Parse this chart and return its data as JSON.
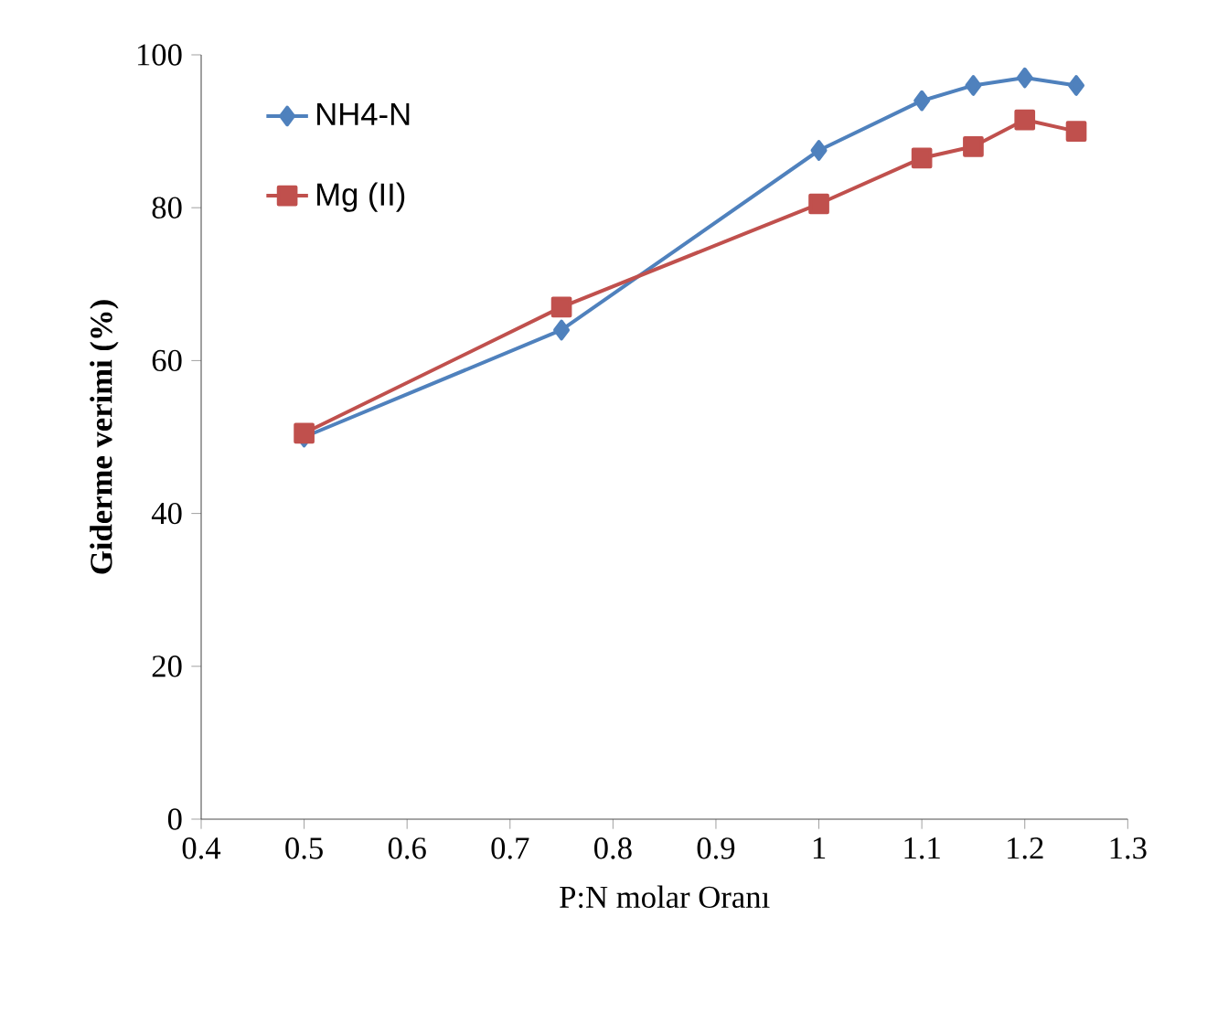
{
  "chart_data": {
    "type": "line",
    "xlabel": "P:N molar Oranı",
    "ylabel": "Giderme verimi (%)",
    "x": [
      0.5,
      0.75,
      1,
      1.1,
      1.15,
      1.2,
      1.25
    ],
    "series": [
      {
        "name": "NH4-N",
        "color": "#4f81bd",
        "marker": "diamond",
        "values": [
          50,
          64,
          87.5,
          94,
          96,
          97,
          96
        ]
      },
      {
        "name": "Mg (II)",
        "color": "#c0504d",
        "marker": "square",
        "values": [
          50.5,
          67,
          80.5,
          86.5,
          88,
          91.5,
          90
        ]
      }
    ],
    "xlim": [
      0.4,
      1.3
    ],
    "ylim": [
      0,
      100
    ],
    "xticks": [
      {
        "value": 0.4,
        "label": "0.4"
      },
      {
        "value": 0.5,
        "label": "0.5"
      },
      {
        "value": 0.6,
        "label": "0.6"
      },
      {
        "value": 0.7,
        "label": "0.7"
      },
      {
        "value": 0.8,
        "label": "0.8"
      },
      {
        "value": 0.9,
        "label": "0.9"
      },
      1,
      {
        "value": 1.1,
        "label": "1.1"
      },
      {
        "value": 1.2,
        "label": "1.2"
      },
      {
        "value": 1.3,
        "label": "1.3"
      }
    ],
    "yticks": [
      0,
      20,
      40,
      60,
      80,
      100
    ],
    "grid": false,
    "legend": "top left",
    "line_style": "solid"
  }
}
